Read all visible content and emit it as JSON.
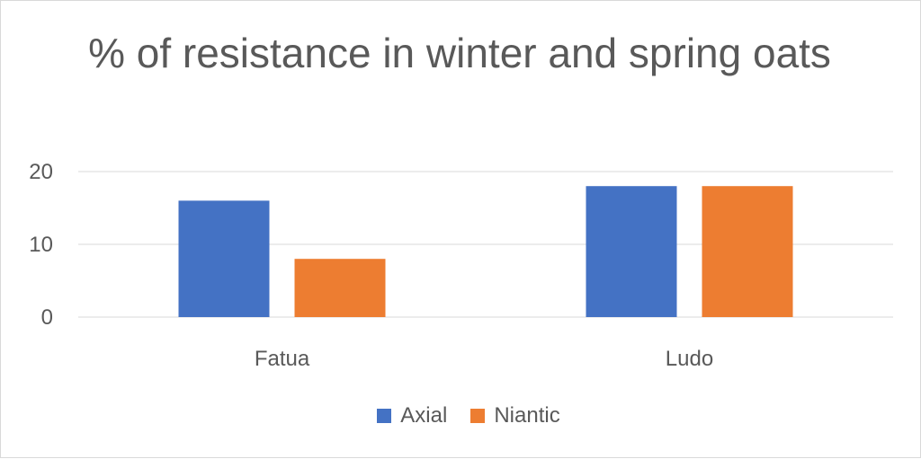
{
  "chart_data": {
    "type": "bar",
    "title": "% of resistance in winter and spring oats",
    "categories": [
      "Fatua",
      "Ludo"
    ],
    "series": [
      {
        "name": "Axial",
        "values": [
          16,
          18
        ],
        "color": "#4472C4"
      },
      {
        "name": "Niantic",
        "values": [
          8,
          18
        ],
        "color": "#ED7D31"
      }
    ],
    "yticks": [
      0,
      10,
      20
    ],
    "ylim": [
      0,
      20
    ],
    "grid": true,
    "legend_position": "bottom"
  }
}
